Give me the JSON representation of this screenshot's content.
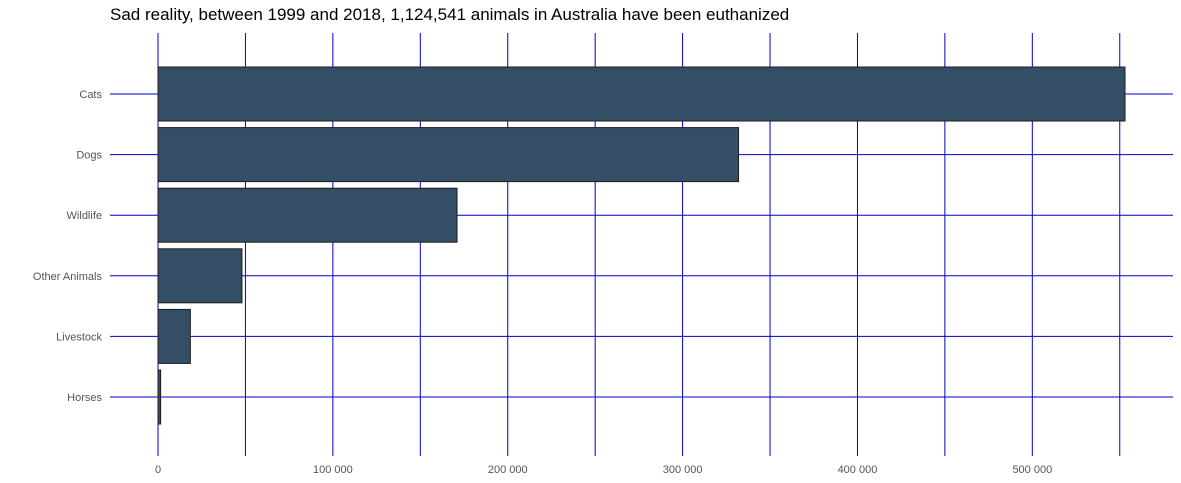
{
  "chart_data": {
    "type": "bar",
    "orientation": "horizontal",
    "title": "Sad reality, between 1999 and 2018, 1,124,541 animals in Australia have been euthanized",
    "xlabel": "",
    "ylabel": "",
    "categories": [
      "Cats",
      "Dogs",
      "Wildlife",
      "Other Animals",
      "Livestock",
      "Horses"
    ],
    "values": [
      553000,
      332000,
      171000,
      48000,
      18500,
      1500
    ],
    "xlim": [
      0,
      580000
    ],
    "x_ticks": [
      0,
      100000,
      200000,
      300000,
      400000,
      500000
    ],
    "x_tick_labels": [
      "0",
      "100 000",
      "200 000",
      "300 000",
      "400 000",
      "500 000"
    ],
    "grid": true,
    "colors": {
      "bar": "#344f65",
      "bar_outline": "#1c1c1c",
      "grid": "#0000c8",
      "tick_text": "#555555"
    }
  }
}
